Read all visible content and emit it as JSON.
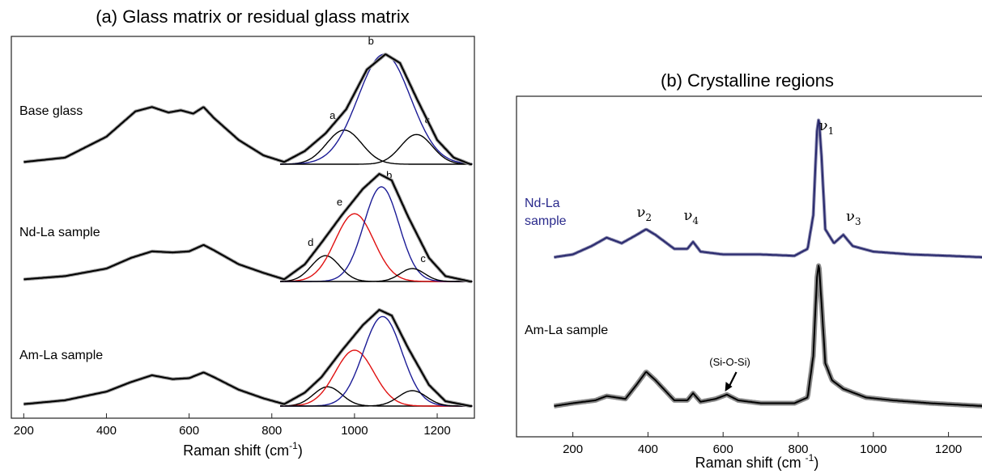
{
  "chart_data": [
    {
      "type": "line",
      "panel": "a",
      "title": "(a) Glass matrix or  residual glass matrix",
      "xlabel": "Raman shift (cm",
      "xlabel_sup": "-1",
      "xlabel_end": ")",
      "xlim": [
        170,
        1290
      ],
      "xticks": [
        200,
        400,
        600,
        800,
        1000,
        1200
      ],
      "series": [
        {
          "name": "Base glass",
          "color": "#000000",
          "spectrum": [
            [
              200,
              0.02
            ],
            [
              300,
              0.06
            ],
            [
              400,
              0.25
            ],
            [
              470,
              0.48
            ],
            [
              510,
              0.52
            ],
            [
              550,
              0.47
            ],
            [
              580,
              0.49
            ],
            [
              610,
              0.46
            ],
            [
              635,
              0.52
            ],
            [
              660,
              0.42
            ],
            [
              720,
              0.22
            ],
            [
              780,
              0.08
            ],
            [
              830,
              0.02
            ],
            [
              880,
              0.12
            ],
            [
              930,
              0.28
            ],
            [
              980,
              0.5
            ],
            [
              1030,
              0.86
            ],
            [
              1075,
              1.0
            ],
            [
              1110,
              0.92
            ],
            [
              1150,
              0.6
            ],
            [
              1200,
              0.22
            ],
            [
              1240,
              0.06
            ],
            [
              1280,
              0.0
            ]
          ],
          "bands": [
            {
              "label": "a",
              "center": 975,
              "amp": 0.31,
              "width": 100,
              "color": "#000000"
            },
            {
              "label": "b",
              "center": 1072,
              "amp": 1.0,
              "width": 150,
              "color": "#1c1c96"
            },
            {
              "label": "c",
              "center": 1150,
              "amp": 0.27,
              "width": 90,
              "color": "#000000"
            }
          ]
        },
        {
          "name": "Nd-La sample",
          "color": "#000000",
          "spectrum": [
            [
              200,
              0.02
            ],
            [
              300,
              0.05
            ],
            [
              400,
              0.12
            ],
            [
              460,
              0.22
            ],
            [
              510,
              0.28
            ],
            [
              560,
              0.27
            ],
            [
              600,
              0.28
            ],
            [
              635,
              0.34
            ],
            [
              660,
              0.29
            ],
            [
              720,
              0.16
            ],
            [
              780,
              0.08
            ],
            [
              830,
              0.02
            ],
            [
              880,
              0.16
            ],
            [
              920,
              0.36
            ],
            [
              970,
              0.62
            ],
            [
              1020,
              0.86
            ],
            [
              1060,
              1.0
            ],
            [
              1090,
              0.94
            ],
            [
              1130,
              0.6
            ],
            [
              1180,
              0.22
            ],
            [
              1220,
              0.05
            ],
            [
              1280,
              0.0
            ]
          ],
          "bands": [
            {
              "label": "d",
              "center": 930,
              "amp": 0.24,
              "width": 80,
              "color": "#000000"
            },
            {
              "label": "e",
              "center": 1000,
              "amp": 0.63,
              "width": 110,
              "color": "#e01010"
            },
            {
              "label": "b",
              "center": 1065,
              "amp": 0.88,
              "width": 100,
              "color": "#1c1c96"
            },
            {
              "label": "c",
              "center": 1140,
              "amp": 0.12,
              "width": 70,
              "color": "#000000"
            }
          ]
        },
        {
          "name": "Am-La sample",
          "color": "#000000",
          "spectrum": [
            [
              200,
              0.02
            ],
            [
              300,
              0.06
            ],
            [
              400,
              0.15
            ],
            [
              460,
              0.25
            ],
            [
              510,
              0.32
            ],
            [
              560,
              0.28
            ],
            [
              600,
              0.29
            ],
            [
              635,
              0.35
            ],
            [
              660,
              0.3
            ],
            [
              720,
              0.17
            ],
            [
              780,
              0.08
            ],
            [
              830,
              0.02
            ],
            [
              880,
              0.14
            ],
            [
              920,
              0.3
            ],
            [
              970,
              0.58
            ],
            [
              1020,
              0.84
            ],
            [
              1060,
              1.0
            ],
            [
              1090,
              0.94
            ],
            [
              1130,
              0.6
            ],
            [
              1180,
              0.22
            ],
            [
              1220,
              0.05
            ],
            [
              1280,
              0.0
            ]
          ],
          "bands": [
            {
              "label": "",
              "center": 935,
              "amp": 0.2,
              "width": 80,
              "color": "#000000"
            },
            {
              "label": "",
              "center": 1000,
              "amp": 0.58,
              "width": 110,
              "color": "#e01010"
            },
            {
              "label": "",
              "center": 1068,
              "amp": 0.93,
              "width": 110,
              "color": "#1c1c96"
            },
            {
              "label": "",
              "center": 1140,
              "amp": 0.16,
              "width": 80,
              "color": "#000000"
            }
          ]
        }
      ]
    },
    {
      "type": "line",
      "panel": "b",
      "title": "(b) Crystalline regions",
      "xlabel": "Raman shift (cm ",
      "xlabel_sup": "-1",
      "xlabel_end": ")",
      "xlim": [
        50,
        1300
      ],
      "xticks": [
        200,
        400,
        600,
        800,
        1000,
        1200
      ],
      "series": [
        {
          "name": "Nd-La sample",
          "label_lines": [
            "Nd-La",
            "sample"
          ],
          "color": "#2a2a6e",
          "label_color": "#2a2a8c",
          "spectrum": [
            [
              150,
              0.0
            ],
            [
              200,
              0.02
            ],
            [
              250,
              0.08
            ],
            [
              290,
              0.14
            ],
            [
              330,
              0.1
            ],
            [
              370,
              0.16
            ],
            [
              395,
              0.2
            ],
            [
              420,
              0.16
            ],
            [
              470,
              0.06
            ],
            [
              505,
              0.06
            ],
            [
              520,
              0.11
            ],
            [
              540,
              0.04
            ],
            [
              600,
              0.02
            ],
            [
              700,
              0.02
            ],
            [
              790,
              0.01
            ],
            [
              825,
              0.06
            ],
            [
              840,
              0.3
            ],
            [
              850,
              0.9
            ],
            [
              855,
              1.0
            ],
            [
              862,
              0.72
            ],
            [
              872,
              0.2
            ],
            [
              895,
              0.1
            ],
            [
              920,
              0.16
            ],
            [
              945,
              0.08
            ],
            [
              1000,
              0.04
            ],
            [
              1100,
              0.02
            ],
            [
              1200,
              0.01
            ],
            [
              1290,
              0.0
            ]
          ]
        },
        {
          "name": "Am-La sample",
          "label_lines": [
            "Am-La sample"
          ],
          "color": "#000000",
          "label_color": "#000000",
          "spectrum": [
            [
              150,
              0.0
            ],
            [
              200,
              0.02
            ],
            [
              260,
              0.04
            ],
            [
              290,
              0.07
            ],
            [
              340,
              0.05
            ],
            [
              370,
              0.15
            ],
            [
              395,
              0.24
            ],
            [
              420,
              0.18
            ],
            [
              470,
              0.04
            ],
            [
              505,
              0.04
            ],
            [
              520,
              0.09
            ],
            [
              540,
              0.03
            ],
            [
              580,
              0.05
            ],
            [
              610,
              0.08
            ],
            [
              640,
              0.04
            ],
            [
              700,
              0.02
            ],
            [
              790,
              0.02
            ],
            [
              825,
              0.06
            ],
            [
              840,
              0.35
            ],
            [
              850,
              0.9
            ],
            [
              855,
              1.0
            ],
            [
              862,
              0.72
            ],
            [
              872,
              0.3
            ],
            [
              890,
              0.18
            ],
            [
              920,
              0.12
            ],
            [
              980,
              0.06
            ],
            [
              1050,
              0.04
            ],
            [
              1150,
              0.02
            ],
            [
              1290,
              0.0
            ]
          ]
        }
      ],
      "annotations": [
        {
          "text": "ν",
          "sub": "1",
          "x": 858
        },
        {
          "text": "ν",
          "sub": "2",
          "x": 390
        },
        {
          "text": "ν",
          "sub": "4",
          "x": 515
        },
        {
          "text": "ν",
          "sub": "3",
          "x": 930
        },
        {
          "text": "(Si-O-Si)",
          "sub": "",
          "x": 618
        }
      ]
    }
  ]
}
